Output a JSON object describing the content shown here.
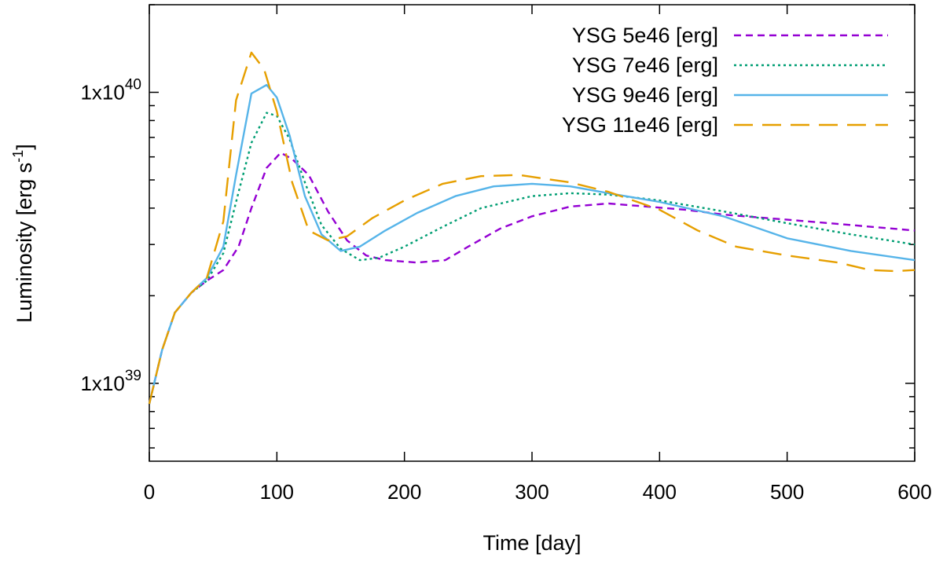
{
  "chart_data": {
    "type": "line",
    "title": "",
    "xlabel": "Time [day]",
    "ylabel_main": "Luminosity [erg s",
    "ylabel_sup": "-1",
    "ylabel_end": "]",
    "xlim": [
      0,
      600
    ],
    "ylim": [
      540000000000000000000000000000000000000,
      20000000000000000000000000000000000000000
    ],
    "yscale": "log",
    "grid": false,
    "legend_position": "top-right",
    "x_ticks": [
      {
        "value": 0,
        "label": "0"
      },
      {
        "value": 100,
        "label": "100"
      },
      {
        "value": 200,
        "label": "200"
      },
      {
        "value": 300,
        "label": "300"
      },
      {
        "value": 400,
        "label": "400"
      },
      {
        "value": 500,
        "label": "500"
      },
      {
        "value": 600,
        "label": "600"
      }
    ],
    "y_major_ticks": [
      {
        "value": 1e+39,
        "base": "1x10",
        "exp": "39"
      },
      {
        "value": 1e+40,
        "base": "1x10",
        "exp": "40"
      }
    ],
    "y_minor_ticks": [
      6e+38,
      7e+38,
      8e+38,
      9e+38,
      2e+39,
      3e+39,
      4e+39,
      5e+39,
      6e+39,
      7e+39,
      8e+39,
      9e+39,
      2e+40
    ],
    "series": [
      {
        "name": "YSG 5e46 [erg]",
        "color": "#9400d3",
        "style": "dash-short",
        "points": [
          [
            0,
            8.5e+38
          ],
          [
            10,
            1.3e+39
          ],
          [
            20,
            1.75e+39
          ],
          [
            33,
            2.05e+39
          ],
          [
            45,
            2.25e+39
          ],
          [
            58,
            2.45e+39
          ],
          [
            70,
            2.95e+39
          ],
          [
            80,
            4e+39
          ],
          [
            92,
            5.5e+39
          ],
          [
            103,
            6.2e+39
          ],
          [
            112,
            5.9e+39
          ],
          [
            125,
            5.2e+39
          ],
          [
            140,
            3.9e+39
          ],
          [
            155,
            3.1e+39
          ],
          [
            170,
            2.75e+39
          ],
          [
            185,
            2.65e+39
          ],
          [
            210,
            2.6e+39
          ],
          [
            232,
            2.65e+39
          ],
          [
            250,
            2.95e+39
          ],
          [
            275,
            3.4e+39
          ],
          [
            300,
            3.75e+39
          ],
          [
            330,
            4.05e+39
          ],
          [
            360,
            4.15e+39
          ],
          [
            390,
            4.05e+39
          ],
          [
            420,
            3.95e+39
          ],
          [
            450,
            3.8e+39
          ],
          [
            500,
            3.65e+39
          ],
          [
            550,
            3.5e+39
          ],
          [
            600,
            3.35e+39
          ]
        ]
      },
      {
        "name": "YSG 7e46 [erg]",
        "color": "#009e73",
        "style": "dot",
        "points": [
          [
            0,
            8.5e+38
          ],
          [
            10,
            1.3e+39
          ],
          [
            20,
            1.75e+39
          ],
          [
            33,
            2.05e+39
          ],
          [
            45,
            2.25e+39
          ],
          [
            58,
            2.8e+39
          ],
          [
            68,
            4.2e+39
          ],
          [
            80,
            6.7e+39
          ],
          [
            92,
            8.5e+39
          ],
          [
            100,
            8.3e+39
          ],
          [
            110,
            6.9e+39
          ],
          [
            122,
            4.9e+39
          ],
          [
            135,
            3.5e+39
          ],
          [
            150,
            2.9e+39
          ],
          [
            165,
            2.65e+39
          ],
          [
            180,
            2.7e+39
          ],
          [
            200,
            2.95e+39
          ],
          [
            230,
            3.45e+39
          ],
          [
            260,
            4e+39
          ],
          [
            300,
            4.4e+39
          ],
          [
            330,
            4.5e+39
          ],
          [
            360,
            4.45e+39
          ],
          [
            400,
            4.25e+39
          ],
          [
            450,
            3.9e+39
          ],
          [
            500,
            3.55e+39
          ],
          [
            550,
            3.25e+39
          ],
          [
            600,
            3e+39
          ]
        ]
      },
      {
        "name": "YSG 9e46 [erg]",
        "color": "#56b4e9",
        "style": "solid",
        "points": [
          [
            0,
            8.5e+38
          ],
          [
            10,
            1.3e+39
          ],
          [
            20,
            1.75e+39
          ],
          [
            33,
            2.05e+39
          ],
          [
            45,
            2.3e+39
          ],
          [
            58,
            2.95e+39
          ],
          [
            68,
            5.2e+39
          ],
          [
            80,
            9.9e+39
          ],
          [
            92,
            1.06e+40
          ],
          [
            100,
            9.6e+39
          ],
          [
            110,
            7.1e+39
          ],
          [
            122,
            4.4e+39
          ],
          [
            135,
            3.25e+39
          ],
          [
            150,
            2.85e+39
          ],
          [
            165,
            2.95e+39
          ],
          [
            185,
            3.35e+39
          ],
          [
            210,
            3.85e+39
          ],
          [
            240,
            4.4e+39
          ],
          [
            270,
            4.75e+39
          ],
          [
            300,
            4.85e+39
          ],
          [
            330,
            4.75e+39
          ],
          [
            360,
            4.5e+39
          ],
          [
            400,
            4.2e+39
          ],
          [
            450,
            3.75e+39
          ],
          [
            500,
            3.15e+39
          ],
          [
            550,
            2.85e+39
          ],
          [
            600,
            2.65e+39
          ]
        ]
      },
      {
        "name": "YSG 11e46 [erg]",
        "color": "#e69f00",
        "style": "dash-long",
        "points": [
          [
            0,
            8.5e+38
          ],
          [
            10,
            1.3e+39
          ],
          [
            20,
            1.75e+39
          ],
          [
            33,
            2.05e+39
          ],
          [
            45,
            2.3e+39
          ],
          [
            58,
            3.6e+39
          ],
          [
            68,
            9.4e+39
          ],
          [
            80,
            1.37e+40
          ],
          [
            90,
            1.2e+40
          ],
          [
            100,
            8.6e+39
          ],
          [
            112,
            4.9e+39
          ],
          [
            125,
            3.35e+39
          ],
          [
            140,
            3.1e+39
          ],
          [
            155,
            3.2e+39
          ],
          [
            175,
            3.7e+39
          ],
          [
            200,
            4.25e+39
          ],
          [
            230,
            4.85e+39
          ],
          [
            260,
            5.15e+39
          ],
          [
            290,
            5.2e+39
          ],
          [
            330,
            4.9e+39
          ],
          [
            360,
            4.55e+39
          ],
          [
            400,
            3.95e+39
          ],
          [
            430,
            3.35e+39
          ],
          [
            460,
            2.95e+39
          ],
          [
            500,
            2.75e+39
          ],
          [
            540,
            2.6e+39
          ],
          [
            565,
            2.45e+39
          ],
          [
            585,
            2.43e+39
          ],
          [
            600,
            2.45e+39
          ]
        ]
      }
    ]
  }
}
